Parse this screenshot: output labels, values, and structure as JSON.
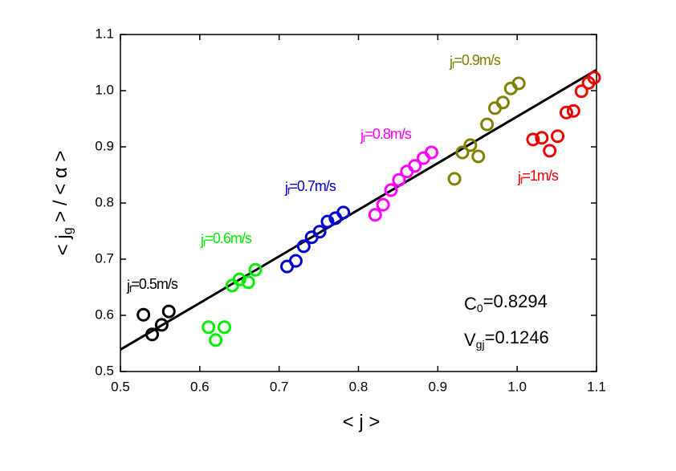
{
  "chart_data": {
    "type": "scatter",
    "xlabel": "< j >",
    "ylabel": "< jg > / < α >",
    "xlim": [
      0.5,
      1.1
    ],
    "ylim": [
      0.5,
      1.1
    ],
    "xticks": [
      0.5,
      0.6,
      0.7,
      0.8,
      0.9,
      {
        "value": 1.0,
        "label": "1.0"
      },
      1.1
    ],
    "yticks": [
      0.5,
      0.6,
      0.7,
      0.8,
      0.9,
      {
        "value": 1.0,
        "label": "1.0"
      },
      1.1
    ],
    "series": [
      {
        "name": "jf=0.5m/s",
        "color": "#000000",
        "x": [
          0.529,
          0.54,
          0.552,
          0.561
        ],
        "values": [
          0.601,
          0.566,
          0.583,
          0.607
        ]
      },
      {
        "name": "jf=0.6m/s",
        "color": "#00ee00",
        "x": [
          0.611,
          0.62,
          0.631,
          0.641,
          0.65,
          0.661,
          0.67
        ],
        "values": [
          0.579,
          0.556,
          0.579,
          0.653,
          0.664,
          0.659,
          0.681
        ]
      },
      {
        "name": "jf=0.7m/s",
        "color": "#0000cc",
        "x": [
          0.71,
          0.721,
          0.731,
          0.741,
          0.751,
          0.761,
          0.771,
          0.781
        ],
        "values": [
          0.687,
          0.697,
          0.723,
          0.739,
          0.749,
          0.767,
          0.773,
          0.783
        ]
      },
      {
        "name": "jf=0.8m/s",
        "color": "#ff00ff",
        "x": [
          0.821,
          0.831,
          0.841,
          0.851,
          0.861,
          0.871,
          0.882,
          0.892
        ],
        "values": [
          0.779,
          0.797,
          0.823,
          0.841,
          0.856,
          0.866,
          0.88,
          0.89
        ]
      },
      {
        "name": "jf=0.9m/s",
        "color": "#808000",
        "x": [
          0.921,
          0.931,
          0.941,
          0.951,
          0.962,
          0.972,
          0.982,
          0.992,
          1.002
        ],
        "values": [
          0.843,
          0.89,
          0.903,
          0.883,
          0.94,
          0.969,
          0.979,
          1.004,
          1.013
        ]
      },
      {
        "name": "jf=1m/s",
        "color": "#ee0000",
        "x": [
          1.02,
          1.031,
          1.041,
          1.051,
          1.062,
          1.071,
          1.081,
          1.09,
          1.097
        ],
        "values": [
          0.913,
          0.916,
          0.893,
          0.919,
          0.961,
          0.964,
          0.999,
          1.014,
          1.023
        ]
      }
    ],
    "fit": {
      "color": "#000000",
      "x": [
        0.5,
        1.1
      ],
      "values": [
        0.539,
        1.037
      ]
    },
    "annotations": [
      "C0=0.8294",
      "Vgj=0.1246"
    ]
  }
}
